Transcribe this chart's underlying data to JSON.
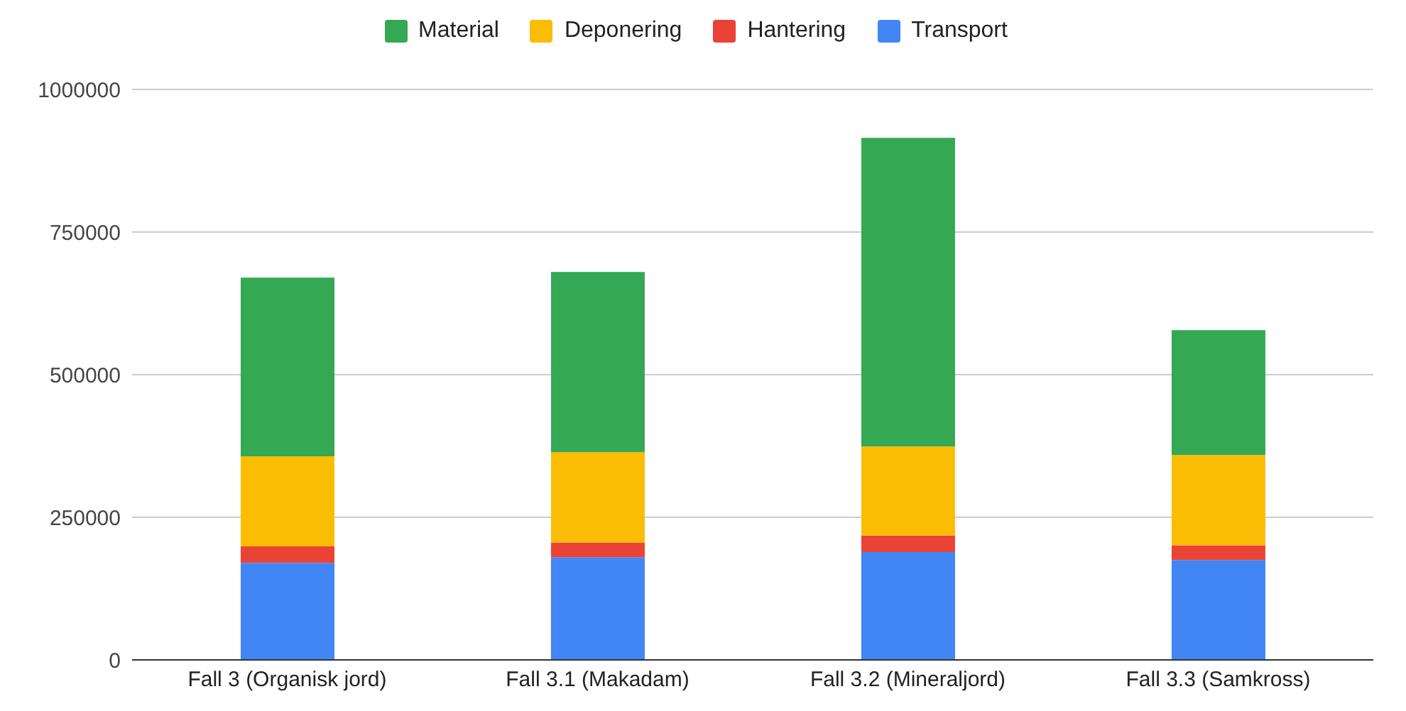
{
  "chart_data": {
    "type": "bar",
    "stacked": true,
    "categories": [
      "Fall 3 (Organisk jord)",
      "Fall 3.1 (Makadam)",
      "Fall 3.2 (Mineraljord)",
      "Fall 3.3 (Samkross)"
    ],
    "series": [
      {
        "name": "Transport",
        "color": "#4285f4",
        "values": [
          170000,
          180000,
          189000,
          175000
        ]
      },
      {
        "name": "Hantering",
        "color": "#ea4335",
        "values": [
          29000,
          26000,
          29000,
          26000
        ]
      },
      {
        "name": "Deponering",
        "color": "#fbbc04",
        "values": [
          158000,
          158000,
          156000,
          158000
        ]
      },
      {
        "name": "Material",
        "color": "#34a853",
        "values": [
          313000,
          316000,
          541000,
          219000
        ]
      }
    ],
    "ylim": [
      0,
      1000000
    ],
    "yticks": [
      0,
      250000,
      500000,
      750000,
      1000000
    ],
    "grid": "y",
    "legend": "top"
  }
}
